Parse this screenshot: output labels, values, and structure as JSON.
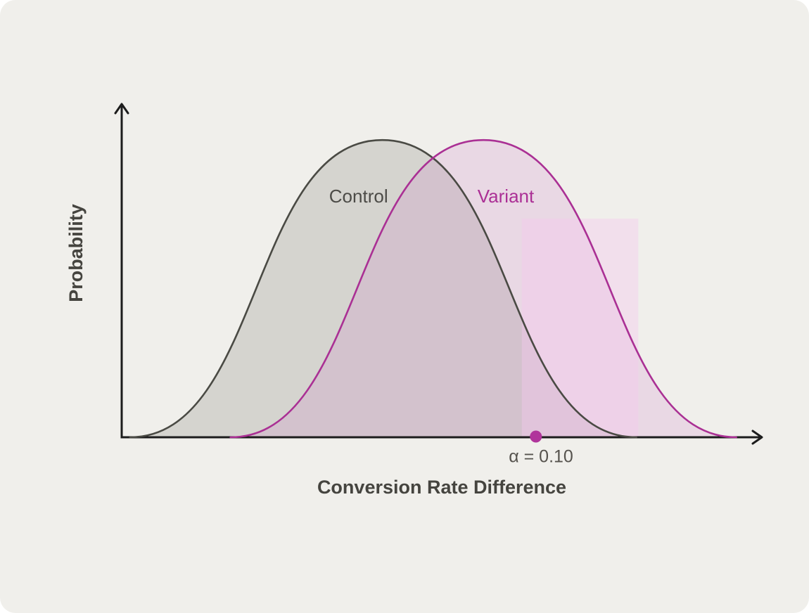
{
  "canvas": {
    "background": "#f0efeb",
    "outer_background": "#ffffff"
  },
  "chart_data": {
    "type": "area",
    "title": "",
    "xlabel": "Conversion Rate Difference",
    "ylabel": "Probability",
    "axis_color": "#1c1c1c",
    "axis_title_color": "#45443f",
    "grid": false,
    "x_ticks": [],
    "y_ticks": [],
    "coordinates": "fractions of plot area: x 0=origin to 1=axis end, y 0=baseline to 1=axis top",
    "series": [
      {
        "name": "Control",
        "shape": "bell",
        "stroke": "#4a4a44",
        "fill": "rgba(105,103,95,0.20)",
        "label_color": "#4c4b47",
        "x_start": 0.013,
        "x_peak": 0.407,
        "x_end": 0.804,
        "peak_height": 0.892,
        "label_x": 0.37,
        "label_y": 0.719
      },
      {
        "name": "Variant",
        "shape": "bell",
        "stroke": "#aa3094",
        "fill": "rgba(205,125,200,0.20)",
        "label_color": "#ab2f95",
        "x_start": 0.17,
        "x_peak": 0.565,
        "x_end": 0.96,
        "peak_height": 0.892,
        "label_x": 0.6,
        "label_y": 0.719
      }
    ],
    "alpha_region": {
      "label": "α = 0.10",
      "label_color": "#56534e",
      "fill": "rgba(246,200,238,0.42)",
      "x_start": 0.625,
      "x_end": 0.807,
      "height": 0.656,
      "marker_x": 0.647,
      "marker_color": "#b0349b",
      "label_x": 0.655
    }
  }
}
